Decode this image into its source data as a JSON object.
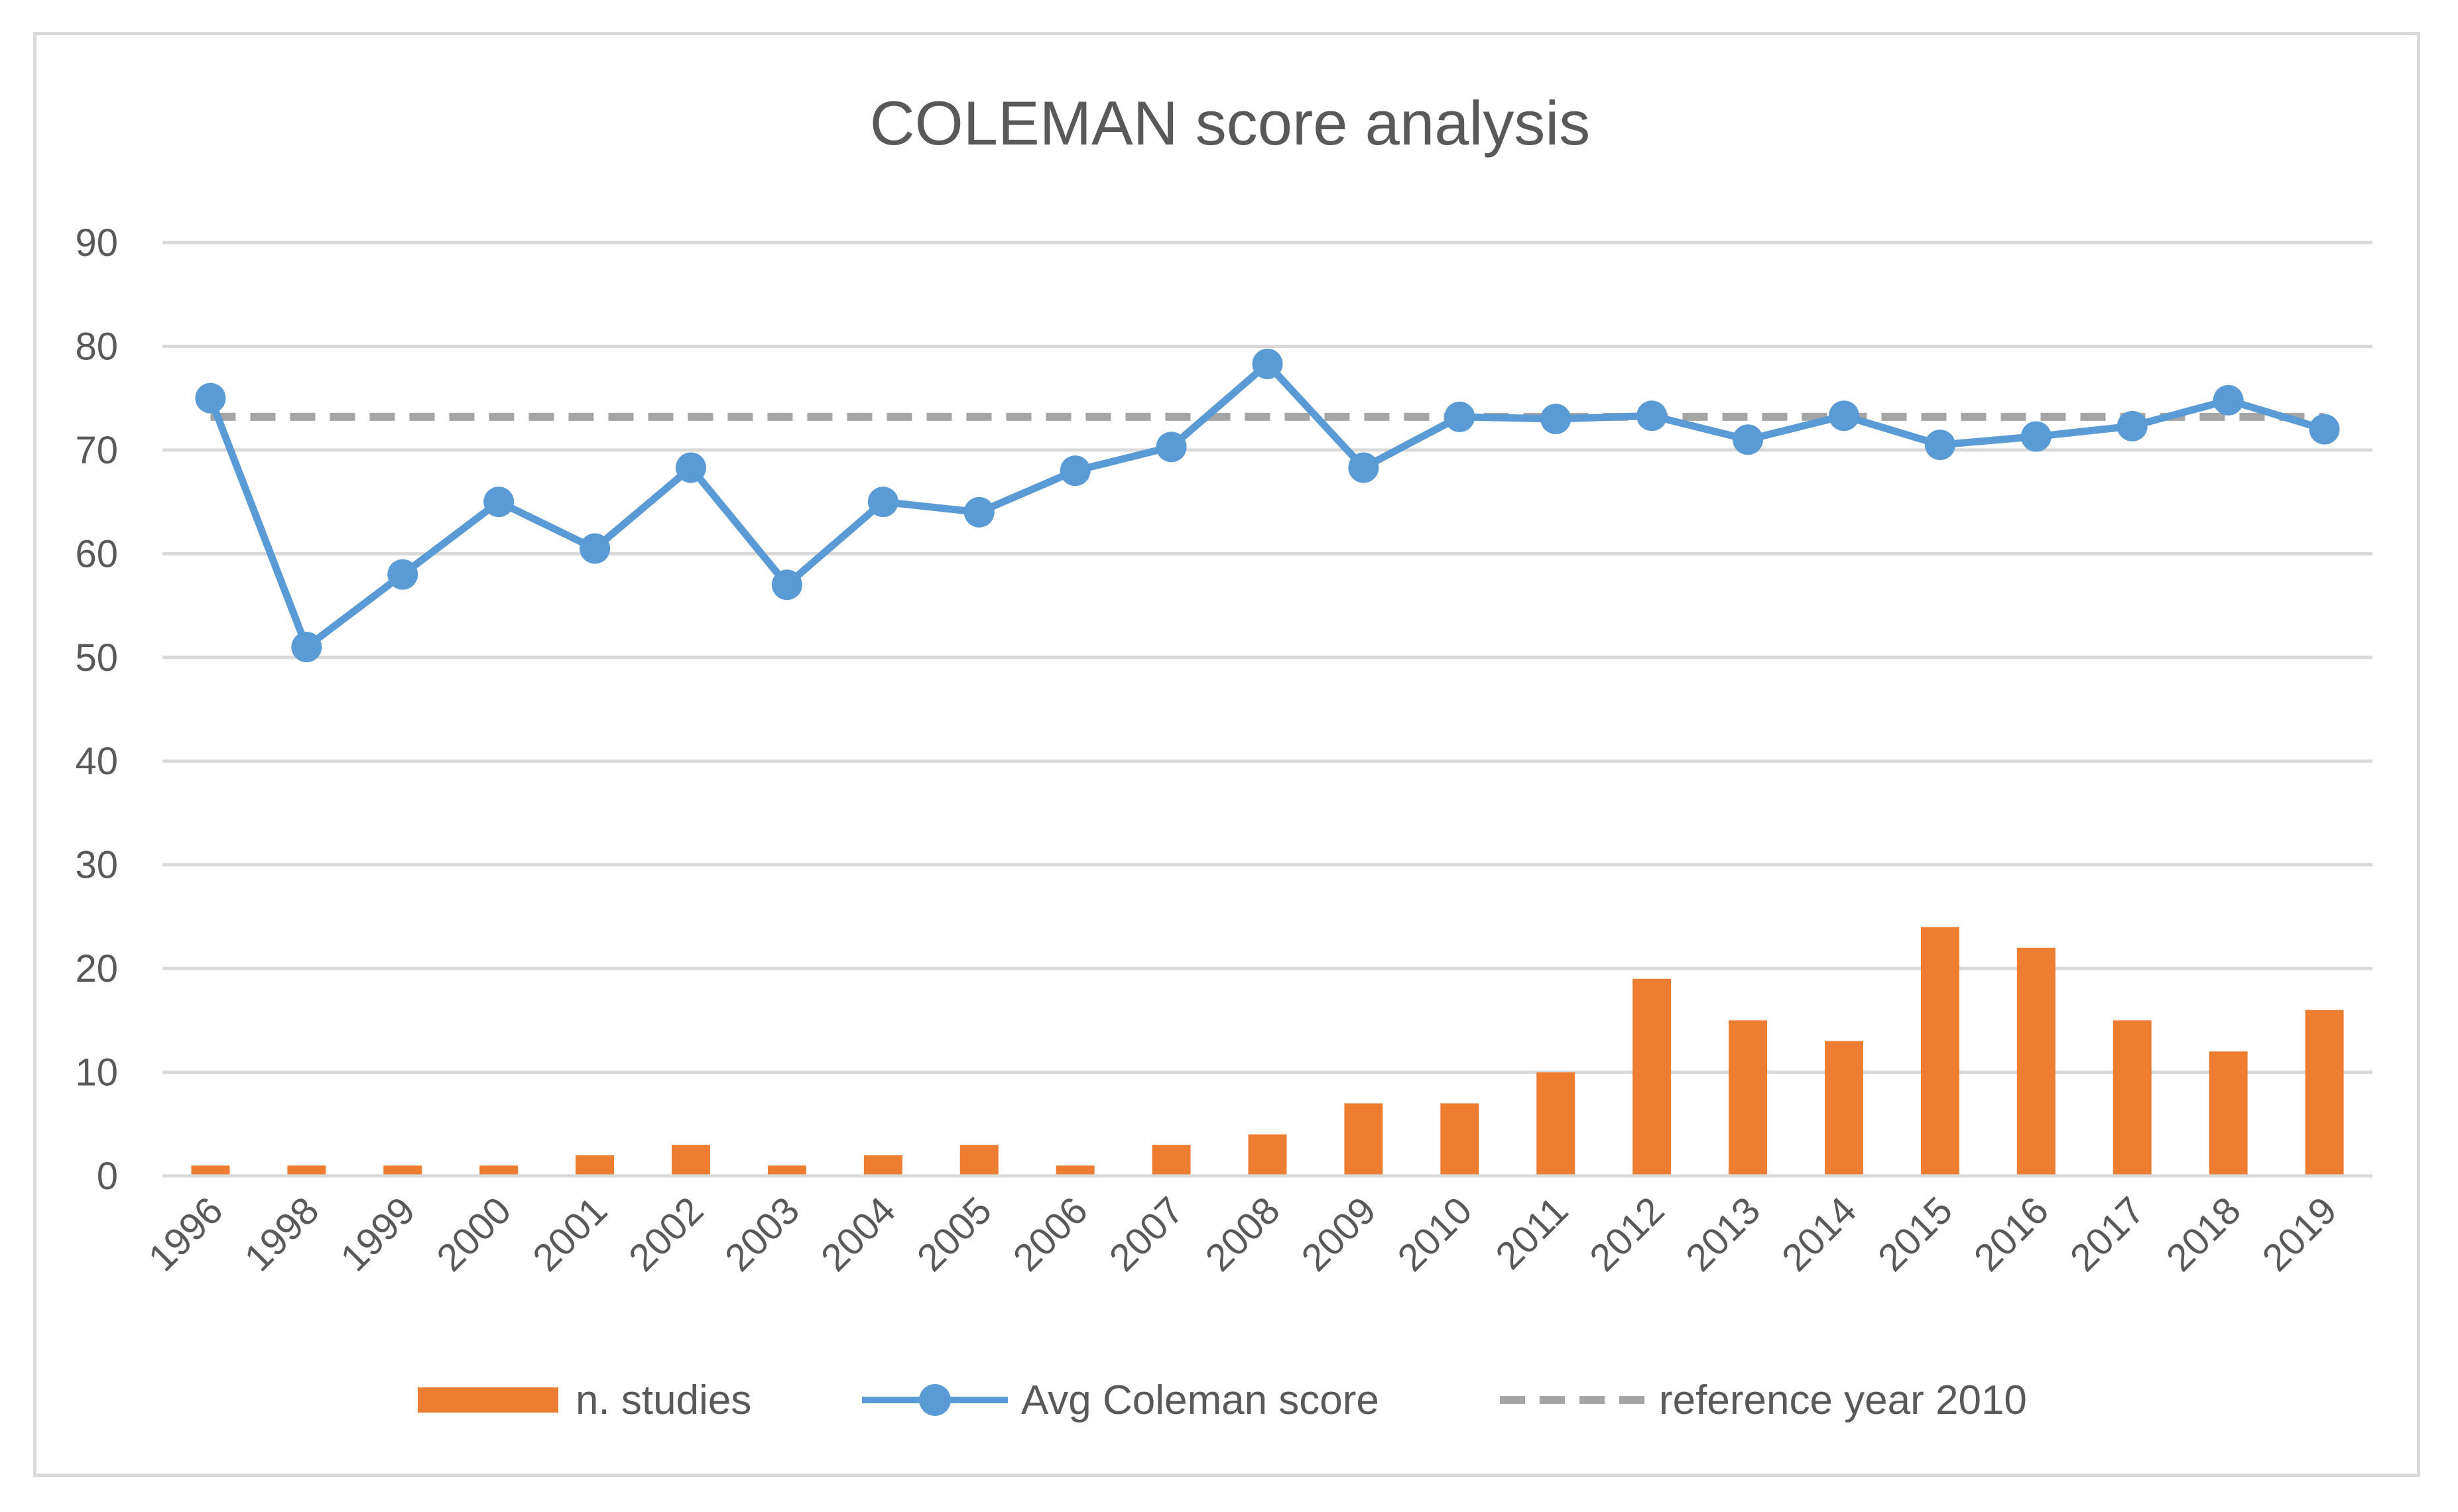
{
  "chart_data": {
    "type": "bar",
    "title": "COLEMAN score analysis",
    "categories": [
      "1996",
      "1998",
      "1999",
      "2000",
      "2001",
      "2002",
      "2003",
      "2004",
      "2005",
      "2006",
      "2007",
      "2008",
      "2009",
      "2010",
      "2011",
      "2012",
      "2013",
      "2014",
      "2015",
      "2016",
      "2017",
      "2018",
      "2019"
    ],
    "series": [
      {
        "name": "n. studies",
        "type": "bar",
        "color": "#ed7d31",
        "values": [
          1,
          1,
          1,
          1,
          2,
          3,
          1,
          2,
          3,
          1,
          3,
          4,
          7,
          7,
          10,
          19,
          15,
          13,
          24,
          22,
          15,
          12,
          16
        ]
      },
      {
        "name": "Avg Coleman score",
        "type": "line",
        "marker": "circle",
        "color": "#5b9bd5",
        "values": [
          75,
          51,
          58,
          65,
          60.5,
          68.3,
          57,
          65,
          64,
          68,
          70.3,
          78.3,
          68.3,
          73.2,
          73,
          73.3,
          71,
          73.3,
          70.5,
          71.3,
          72.3,
          74.8,
          72
        ]
      },
      {
        "name": "reference year 2010",
        "type": "line",
        "dash": "dashed",
        "color": "#a5a5a5",
        "values": [
          73.2,
          73.2,
          73.2,
          73.2,
          73.2,
          73.2,
          73.2,
          73.2,
          73.2,
          73.2,
          73.2,
          73.2,
          73.2,
          73.2,
          73.2,
          73.2,
          73.2,
          73.2,
          73.2,
          73.2,
          73.2,
          73.2,
          73.2
        ]
      }
    ],
    "ylim": [
      0,
      90
    ],
    "yticks": [
      0,
      10,
      20,
      30,
      40,
      50,
      60,
      70,
      80,
      90
    ],
    "grid": true,
    "legend_position": "bottom",
    "xlabel": "",
    "ylabel": ""
  }
}
